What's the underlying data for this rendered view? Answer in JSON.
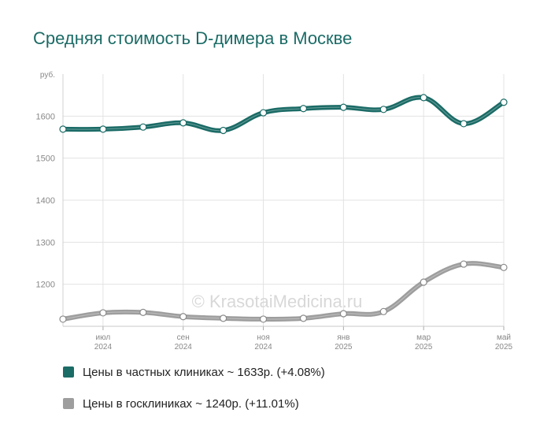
{
  "title": "Средняя стоимость D-димера в Москве",
  "watermark": "© KrasotaiMedicina.ru",
  "chart_data": {
    "type": "line",
    "y_unit": "руб.",
    "ylim": [
      1100,
      1700
    ],
    "yticks": [
      1200,
      1300,
      1400,
      1500,
      1600
    ],
    "x_tick_labels": [
      {
        "i": 1,
        "month": "июл",
        "year": "2024"
      },
      {
        "i": 3,
        "month": "сен",
        "year": "2024"
      },
      {
        "i": 5,
        "month": "ноя",
        "year": "2024"
      },
      {
        "i": 7,
        "month": "янв",
        "year": "2025"
      },
      {
        "i": 9,
        "month": "мар",
        "year": "2025"
      },
      {
        "i": 11,
        "month": "май",
        "year": "2025"
      }
    ],
    "point_count": 12,
    "series": [
      {
        "name": "Цены в частных клиниках ~ 1633р. (+4.08%)",
        "color": "#1b6b66",
        "values": [
          1569,
          1569,
          1574,
          1584,
          1566,
          1608,
          1618,
          1621,
          1616,
          1644,
          1582,
          1633
        ]
      },
      {
        "name": "Цены в госклиниках ~ 1240р. (+11.01%)",
        "color": "#9e9e9e",
        "values": [
          1117,
          1132,
          1133,
          1123,
          1119,
          1117,
          1119,
          1130,
          1135,
          1205,
          1248,
          1240
        ]
      }
    ]
  }
}
